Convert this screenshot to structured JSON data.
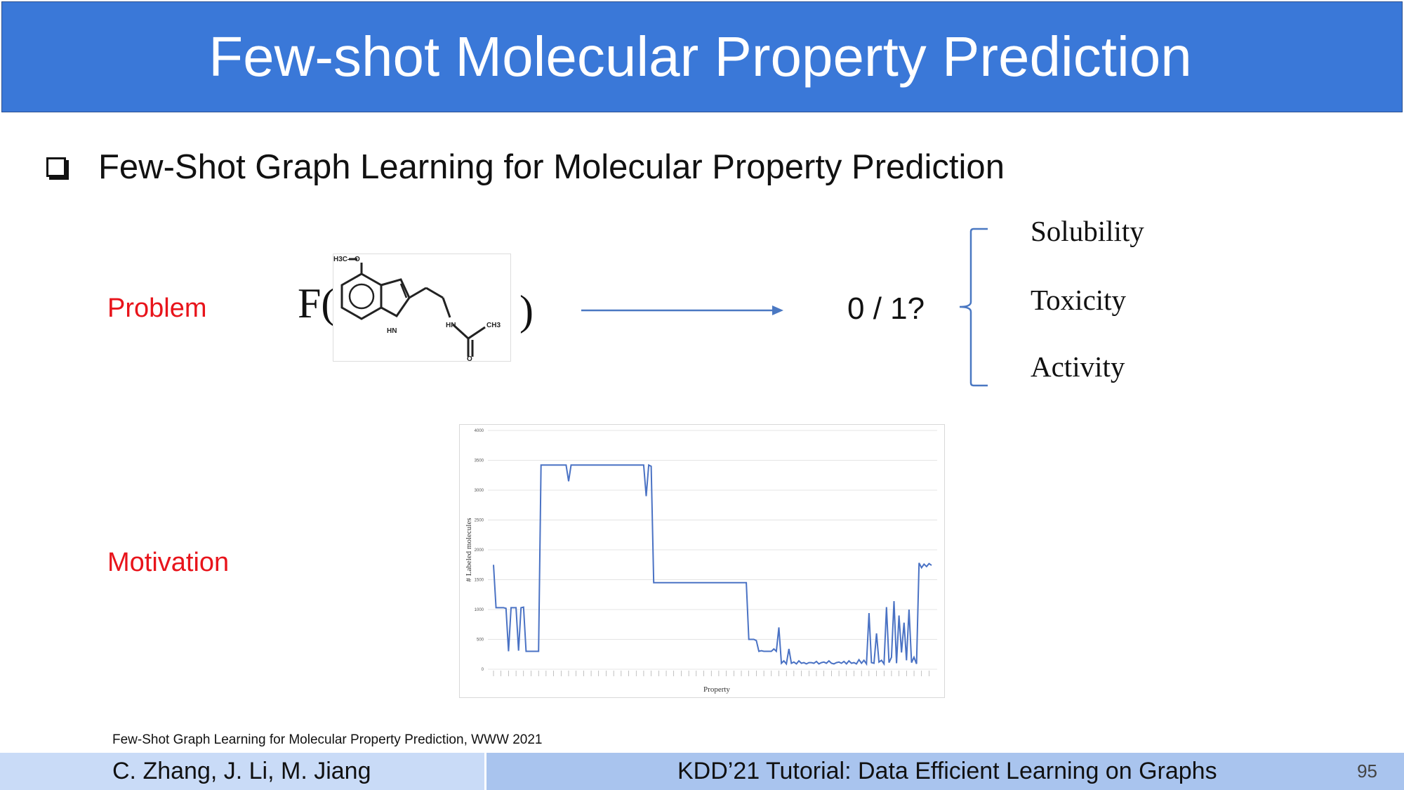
{
  "header": {
    "title": "Few-shot Molecular Property Prediction"
  },
  "bullet": {
    "text": "Few-Shot Graph Learning for Molecular Property Prediction"
  },
  "problem": {
    "label": "Problem",
    "function_open": "F(",
    "function_close": ")",
    "output": "0 / 1?",
    "properties": [
      "Solubility",
      "Toxicity",
      "Activity"
    ],
    "molecule_labels": {
      "methyl_ether": "H3C—O",
      "ring_nh": "HN",
      "amide_nh": "HN",
      "amide_ch3": "CH3",
      "carbonyl_o": "O"
    }
  },
  "motivation": {
    "label": "Motivation"
  },
  "chart_data": {
    "type": "line",
    "xlabel": "Property",
    "ylabel": "# Labeled molecules",
    "ylim": [
      0,
      4000
    ],
    "yticks": [
      "0",
      "500",
      "1000",
      "1500",
      "2000",
      "2500",
      "3000",
      "3500",
      "4000"
    ],
    "grid": true,
    "series": [
      {
        "values": [
          1750,
          1030,
          1030,
          1030,
          1030,
          1020,
          300,
          1030,
          1030,
          1030,
          310,
          1030,
          1040,
          300,
          300,
          300,
          300,
          300,
          300,
          3420,
          3420,
          3420,
          3420,
          3420,
          3420,
          3420,
          3420,
          3420,
          3420,
          3420,
          3150,
          3420,
          3420,
          3420,
          3420,
          3420,
          3420,
          3420,
          3420,
          3420,
          3420,
          3420,
          3420,
          3420,
          3420,
          3420,
          3420,
          3420,
          3420,
          3420,
          3420,
          3420,
          3420,
          3420,
          3420,
          3420,
          3420,
          3420,
          3420,
          3420,
          3420,
          2900,
          3420,
          3400,
          1450,
          1450,
          1450,
          1450,
          1450,
          1450,
          1450,
          1450,
          1450,
          1450,
          1450,
          1450,
          1450,
          1450,
          1450,
          1450,
          1450,
          1450,
          1450,
          1450,
          1450,
          1450,
          1450,
          1450,
          1450,
          1450,
          1450,
          1450,
          1450,
          1450,
          1450,
          1450,
          1450,
          1450,
          1450,
          1450,
          1450,
          1450,
          500,
          500,
          500,
          480,
          300,
          310,
          300,
          300,
          300,
          300,
          340,
          300,
          700,
          100,
          140,
          90,
          340,
          100,
          120,
          90,
          140,
          100,
          110,
          90,
          110,
          110,
          100,
          130,
          90,
          110,
          120,
          100,
          140,
          100,
          90,
          110,
          120,
          100,
          130,
          90,
          140,
          100,
          110,
          90,
          160,
          100,
          150,
          90,
          940,
          110,
          100,
          600,
          120,
          150,
          90,
          1040,
          110,
          200,
          1140,
          100,
          900,
          280,
          780,
          150,
          1000,
          110,
          200,
          90,
          1780,
          1700,
          1760,
          1720,
          1770,
          1740
        ]
      }
    ]
  },
  "footnote": "Few-Shot Graph Learning for Molecular Property Prediction, WWW 2021",
  "footer": {
    "authors": "C. Zhang, J. Li, M. Jiang",
    "tutorial": "KDD’21 Tutorial: Data Efficient Learning on Graphs",
    "page": "95"
  },
  "colors": {
    "title_bar": "#3a78d8",
    "label_red": "#e8141b",
    "arrow": "#4a78c2",
    "line": "#4a72c4",
    "footer_left": "#c9dbf7",
    "footer_right": "#a9c4ee"
  }
}
